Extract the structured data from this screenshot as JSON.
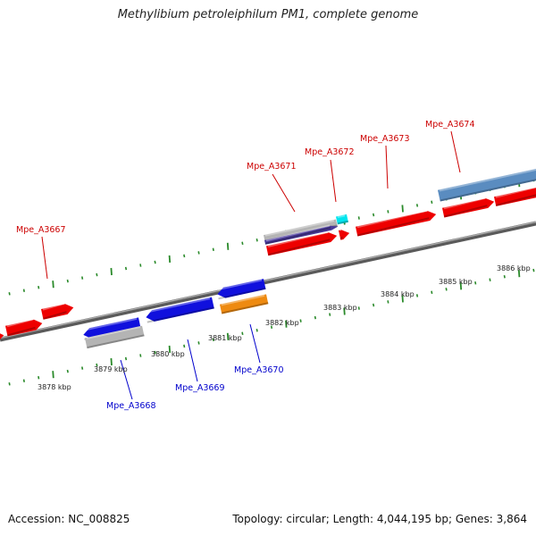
{
  "title": "Methylibium petroleiphilum PM1, complete genome",
  "footer": {
    "accession": "Accession: NC_008825",
    "stats": "Topology: circular; Length: 4,044,195 bp; Genes: 3,864"
  },
  "colors": {
    "forward_gene": "#ee0000",
    "reverse_gene": "#1010dd",
    "pseudo_gene": "#b4b4b4",
    "orange_gene": "#ee8a10",
    "steelblue_gene": "#5a8cc0",
    "cyan_gene": "#00e5ee",
    "purple_gene": "#4a3a9a",
    "backbone": "#888888",
    "tick": "#2a8a2a",
    "forward_label": "#cc0000",
    "reverse_label": "#0000cc"
  },
  "scale_labels": [
    "3878 kbp",
    "3879 kbp",
    "3880 kbp",
    "3881 kbp",
    "3882 kbp",
    "3883 kbp",
    "3884 kbp",
    "3885 kbp",
    "3886 kbp"
  ],
  "gene_labels": {
    "forward": [
      "Mpe_A3667",
      "Mpe_A3671",
      "Mpe_A3672",
      "Mpe_A3673",
      "Mpe_A3674"
    ],
    "reverse": [
      "Mpe_A3668",
      "Mpe_A3669",
      "Mpe_A3670"
    ]
  }
}
